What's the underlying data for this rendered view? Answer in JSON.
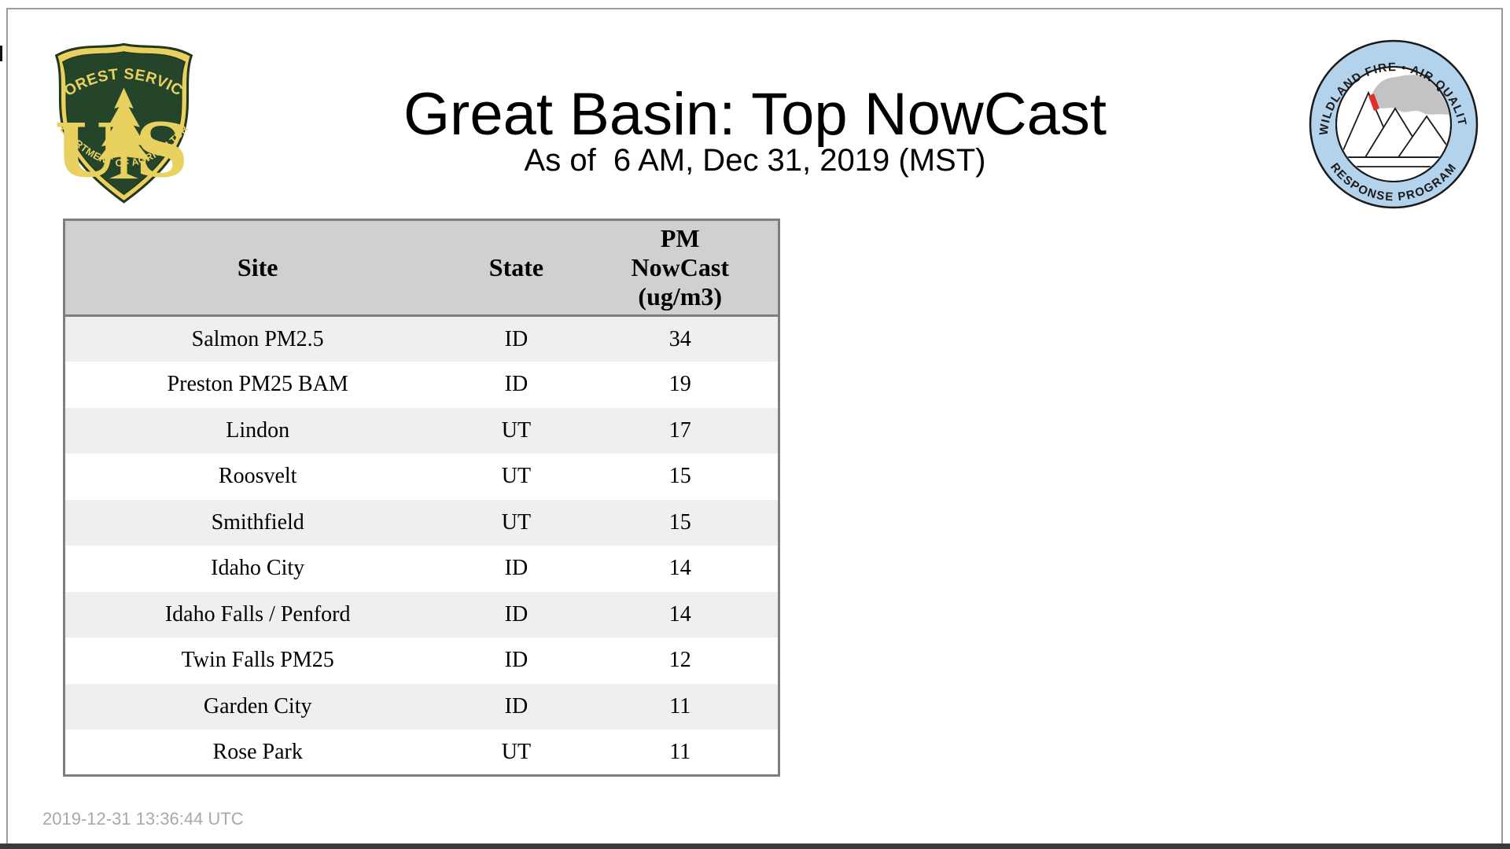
{
  "page": {
    "background": "#ffffff",
    "frame_border_color": "#9c9c9c",
    "bottom_bar_color": "#3a3a3a"
  },
  "header": {
    "title": "Great Basin: Top NowCast",
    "subtitle": "As of  6 AM, Dec 31, 2019 (MST)"
  },
  "logos": {
    "usfs": {
      "arc_top": "FOREST SERVICE",
      "letter_left": "U",
      "letter_right": "S",
      "arc_bottom": "DEPARTMENT OF AGRICULTURE",
      "green": "#25452a",
      "yellow": "#e9d15f"
    },
    "wfaqrp": {
      "arc_top": "WILDLAND FIRE • AIR QUALITY",
      "arc_bottom": "RESPONSE PROGRAM",
      "ring_blue": "#b3d2ec",
      "smoke_gray": "#c3c3c3",
      "flame_red": "#e03025"
    }
  },
  "table": {
    "columns": {
      "site": "Site",
      "state": "State",
      "pm": "PM\nNowCast\n(ug/m3)"
    },
    "header_bg": "#d0d0d0",
    "alt_row_bg": "#efefef",
    "border_color": "#7f7f7f",
    "rows": [
      {
        "site": "Salmon PM2.5",
        "state": "ID",
        "value": "34"
      },
      {
        "site": "Preston PM25 BAM",
        "state": "ID",
        "value": "19"
      },
      {
        "site": "Lindon",
        "state": "UT",
        "value": "17"
      },
      {
        "site": "Roosvelt",
        "state": "UT",
        "value": "15"
      },
      {
        "site": "Smithfield",
        "state": "UT",
        "value": "15"
      },
      {
        "site": "Idaho City",
        "state": "ID",
        "value": "14"
      },
      {
        "site": "Idaho Falls / Penford",
        "state": "ID",
        "value": "14"
      },
      {
        "site": "Twin Falls PM25",
        "state": "ID",
        "value": "12"
      },
      {
        "site": "Garden City",
        "state": "ID",
        "value": "11"
      },
      {
        "site": "Rose Park",
        "state": "UT",
        "value": "11"
      }
    ]
  },
  "footer": {
    "timestamp": "2019-12-31 13:36:44 UTC"
  }
}
